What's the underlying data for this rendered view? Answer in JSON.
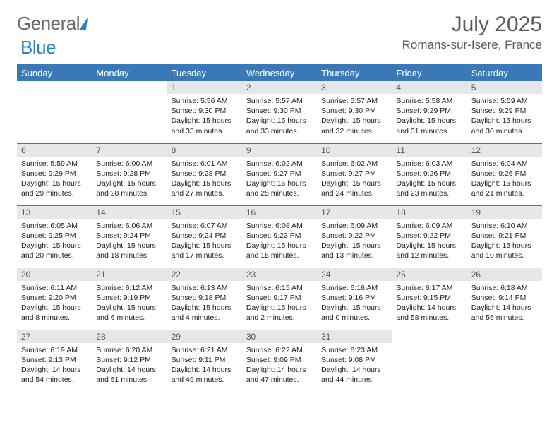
{
  "brand": {
    "part1": "General",
    "part2": "Blue"
  },
  "title": "July 2025",
  "location": "Romans-sur-Isere, France",
  "colors": {
    "header_bg": "#3a79b7",
    "header_text": "#ffffff",
    "daynum_bg": "#e7e7e7",
    "rule": "#3a79b7",
    "body_text": "#222222",
    "title_text": "#5a5a5a"
  },
  "typography": {
    "month_title_fontsize_pt": 22,
    "location_fontsize_pt": 13,
    "dayheader_fontsize_pt": 10,
    "daybody_fontsize_pt": 8
  },
  "calendar": {
    "type": "table",
    "columns": [
      "Sunday",
      "Monday",
      "Tuesday",
      "Wednesday",
      "Thursday",
      "Friday",
      "Saturday"
    ],
    "start_weekday_index": 2,
    "days_in_month": 31,
    "days": [
      {
        "n": 1,
        "sunrise": "5:56 AM",
        "sunset": "9:30 PM",
        "daylight": "15 hours and 33 minutes."
      },
      {
        "n": 2,
        "sunrise": "5:57 AM",
        "sunset": "9:30 PM",
        "daylight": "15 hours and 33 minutes."
      },
      {
        "n": 3,
        "sunrise": "5:57 AM",
        "sunset": "9:30 PM",
        "daylight": "15 hours and 32 minutes."
      },
      {
        "n": 4,
        "sunrise": "5:58 AM",
        "sunset": "9:29 PM",
        "daylight": "15 hours and 31 minutes."
      },
      {
        "n": 5,
        "sunrise": "5:59 AM",
        "sunset": "9:29 PM",
        "daylight": "15 hours and 30 minutes."
      },
      {
        "n": 6,
        "sunrise": "5:59 AM",
        "sunset": "9:29 PM",
        "daylight": "15 hours and 29 minutes."
      },
      {
        "n": 7,
        "sunrise": "6:00 AM",
        "sunset": "9:28 PM",
        "daylight": "15 hours and 28 minutes."
      },
      {
        "n": 8,
        "sunrise": "6:01 AM",
        "sunset": "9:28 PM",
        "daylight": "15 hours and 27 minutes."
      },
      {
        "n": 9,
        "sunrise": "6:02 AM",
        "sunset": "9:27 PM",
        "daylight": "15 hours and 25 minutes."
      },
      {
        "n": 10,
        "sunrise": "6:02 AM",
        "sunset": "9:27 PM",
        "daylight": "15 hours and 24 minutes."
      },
      {
        "n": 11,
        "sunrise": "6:03 AM",
        "sunset": "9:26 PM",
        "daylight": "15 hours and 23 minutes."
      },
      {
        "n": 12,
        "sunrise": "6:04 AM",
        "sunset": "9:26 PM",
        "daylight": "15 hours and 21 minutes."
      },
      {
        "n": 13,
        "sunrise": "6:05 AM",
        "sunset": "9:25 PM",
        "daylight": "15 hours and 20 minutes."
      },
      {
        "n": 14,
        "sunrise": "6:06 AM",
        "sunset": "9:24 PM",
        "daylight": "15 hours and 18 minutes."
      },
      {
        "n": 15,
        "sunrise": "6:07 AM",
        "sunset": "9:24 PM",
        "daylight": "15 hours and 17 minutes."
      },
      {
        "n": 16,
        "sunrise": "6:08 AM",
        "sunset": "9:23 PM",
        "daylight": "15 hours and 15 minutes."
      },
      {
        "n": 17,
        "sunrise": "6:09 AM",
        "sunset": "9:22 PM",
        "daylight": "15 hours and 13 minutes."
      },
      {
        "n": 18,
        "sunrise": "6:09 AM",
        "sunset": "9:22 PM",
        "daylight": "15 hours and 12 minutes."
      },
      {
        "n": 19,
        "sunrise": "6:10 AM",
        "sunset": "9:21 PM",
        "daylight": "15 hours and 10 minutes."
      },
      {
        "n": 20,
        "sunrise": "6:11 AM",
        "sunset": "9:20 PM",
        "daylight": "15 hours and 8 minutes."
      },
      {
        "n": 21,
        "sunrise": "6:12 AM",
        "sunset": "9:19 PM",
        "daylight": "15 hours and 6 minutes."
      },
      {
        "n": 22,
        "sunrise": "6:13 AM",
        "sunset": "9:18 PM",
        "daylight": "15 hours and 4 minutes."
      },
      {
        "n": 23,
        "sunrise": "6:15 AM",
        "sunset": "9:17 PM",
        "daylight": "15 hours and 2 minutes."
      },
      {
        "n": 24,
        "sunrise": "6:16 AM",
        "sunset": "9:16 PM",
        "daylight": "15 hours and 0 minutes."
      },
      {
        "n": 25,
        "sunrise": "6:17 AM",
        "sunset": "9:15 PM",
        "daylight": "14 hours and 58 minutes."
      },
      {
        "n": 26,
        "sunrise": "6:18 AM",
        "sunset": "9:14 PM",
        "daylight": "14 hours and 56 minutes."
      },
      {
        "n": 27,
        "sunrise": "6:19 AM",
        "sunset": "9:13 PM",
        "daylight": "14 hours and 54 minutes."
      },
      {
        "n": 28,
        "sunrise": "6:20 AM",
        "sunset": "9:12 PM",
        "daylight": "14 hours and 51 minutes."
      },
      {
        "n": 29,
        "sunrise": "6:21 AM",
        "sunset": "9:11 PM",
        "daylight": "14 hours and 49 minutes."
      },
      {
        "n": 30,
        "sunrise": "6:22 AM",
        "sunset": "9:09 PM",
        "daylight": "14 hours and 47 minutes."
      },
      {
        "n": 31,
        "sunrise": "6:23 AM",
        "sunset": "9:08 PM",
        "daylight": "14 hours and 44 minutes."
      }
    ],
    "labels": {
      "sunrise": "Sunrise:",
      "sunset": "Sunset:",
      "daylight": "Daylight:"
    }
  }
}
